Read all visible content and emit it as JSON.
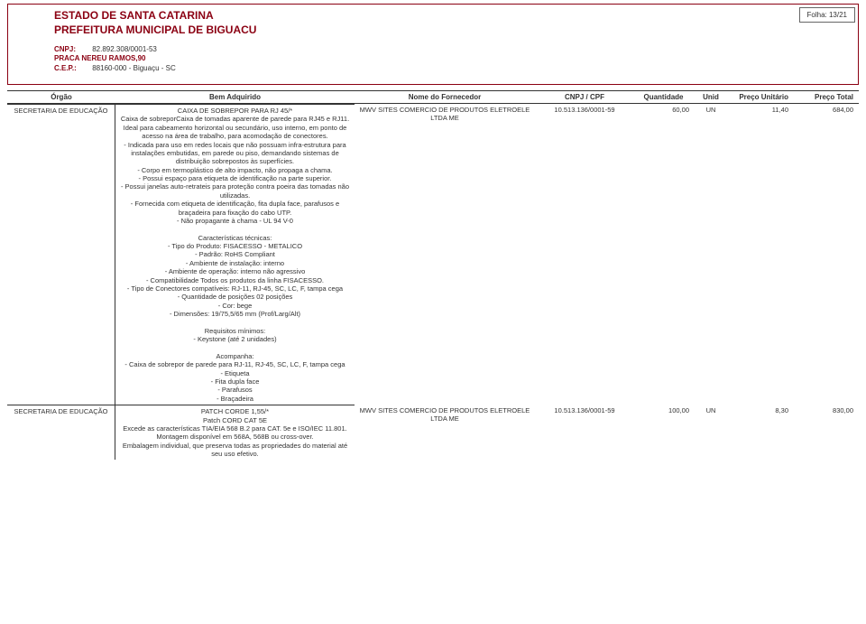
{
  "folha": "Folha: 13/21",
  "header": {
    "line1": "ESTADO DE SANTA CATARINA",
    "line2": "PREFEITURA MUNICIPAL DE BIGUACU"
  },
  "sub": {
    "cnpj_label": "CNPJ:",
    "cnpj": "82.892.308/0001-53",
    "addr": "PRACA NEREU RAMOS,90",
    "cep_label": "C.E.P.:",
    "cep": "88160-000    -  Biguaçu - SC"
  },
  "columns": {
    "orgao": "Órgão",
    "bem": "Bem Adquirido",
    "forn": "Nome do Fornecedor",
    "cnpj": "CNPJ / CPF",
    "qtd": "Quantidade",
    "unid": "Unid",
    "unit": "Preço Unitário",
    "total": "Preço Total"
  },
  "rows": [
    {
      "orgao": "SECRETARIA DE EDUCAÇÃO",
      "bem": "CAIXA DE SOBREPOR PARA RJ 45/*\nCaixa de sobreporCaixa de tomadas aparente de parede para RJ45 e RJ11. Ideal para cabeamento horizontal ou secundário, uso interno, em ponto de acesso na área de trabalho, para acomodação de conectores.\n- Indicada para uso em redes locais que não possuam infra-estrutura para instalações embutidas, em parede ou piso, demandando sistemas de distribuição sobrepostos às superfícies.\n- Corpo em termoplástico de alto impacto, não propaga a chama.\n- Possui espaço para etiqueta de identificação na parte superior.\n- Possui janelas auto-retrateis para proteção contra poeira das tomadas não utilizadas.\n- Fornecida com etiqueta de identificação, fita dupla face, parafusos e braçadeira para fixação do cabo UTP.\n- Não propagante à chama - UL 94 V-0\n\nCaracterísticas técnicas:\n- Tipo do Produto: FISACESSO - METALICO\n- Padrão: RoHS Compliant\n- Ambiente de instalação: interno\n- Ambiente de operação: interno não agressivo\n- Compatibilidade Todos os produtos da linha FISACESSO.\n- Tipo de Conectores compatíveis: RJ-11, RJ-45, SC, LC, F, tampa cega\n- Quantidade de posições 02 posições\n- Cor: bege\n- Dimensões: 19/75,5/65 mm (Prof/Larg/Alt)\n\nRequisitos mínimos:\n- Keystone (até 2 unidades)\n\nAcompanha:\n- Caixa de sobrepor de parede para RJ-11, RJ-45, SC, LC, F, tampa cega\n- Etiqueta\n- Fita dupla face\n- Parafusos\n- Braçadeira",
      "forn": "MWV SITES COMERCIO DE PRODUTOS ELETROELE LTDA ME",
      "cnpj": "10.513.136/0001-59",
      "qtd": "60,00",
      "unid": "UN",
      "unit": "11,40",
      "total": "684,00"
    },
    {
      "orgao": "SECRETARIA DE EDUCAÇÃO",
      "bem": "PATCH CORDE 1,55/*\nPatch CORD CAT 5E\nExcede as características TIA/EIA 568 B.2 para CAT. 5e e ISO/IEC 11.801.\n   Montagem disponível em 568A, 568B ou cross-over.\n   Embalagem individual, que preserva todas as propriedades do material até seu uso efetivo.",
      "forn": "MWV SITES COMERCIO DE PRODUTOS ELETROELE LTDA ME",
      "cnpj": "10.513.136/0001-59",
      "qtd": "100,00",
      "unid": "UN",
      "unit": "8,30",
      "total": "830,00"
    }
  ]
}
